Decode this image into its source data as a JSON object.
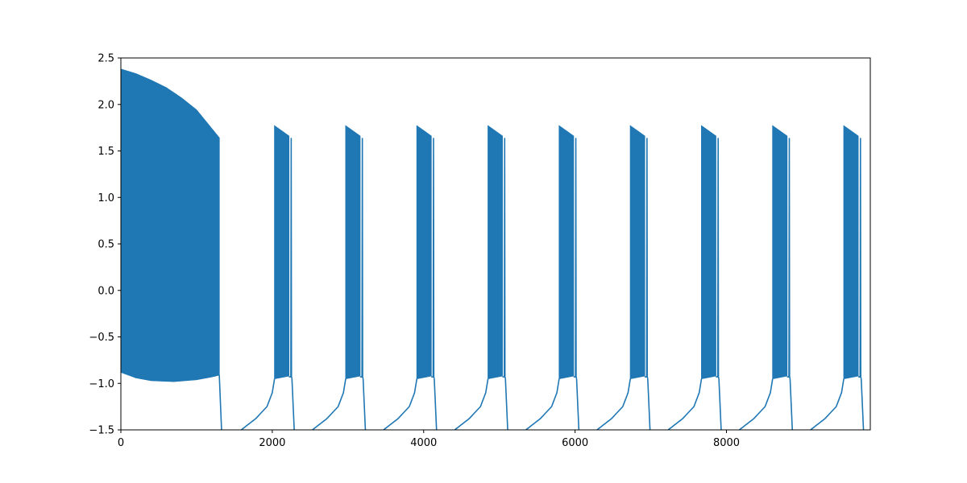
{
  "chart_data": {
    "type": "line",
    "title": "",
    "xlabel": "",
    "ylabel": "",
    "xlim": [
      0,
      9900
    ],
    "ylim": [
      -1.5,
      2.5
    ],
    "grid": false,
    "x_ticks": [
      0,
      2000,
      4000,
      6000,
      8000
    ],
    "y_ticks": [
      -1.5,
      -1.0,
      -0.5,
      0.0,
      0.5,
      1.0,
      1.5,
      2.0,
      2.5
    ],
    "x_tick_labels": [
      "0",
      "2000",
      "4000",
      "6000",
      "8000"
    ],
    "y_tick_labels": [
      "−1.5",
      "−1.0",
      "−0.5",
      "0.0",
      "0.5",
      "1.0",
      "1.5",
      "2.0",
      "2.5"
    ],
    "series": [
      {
        "color": "#1f77b4",
        "initial_oscillation": {
          "x_range": [
            0,
            1300
          ],
          "upper_envelope": [
            [
              0,
              2.38
            ],
            [
              200,
              2.33
            ],
            [
              400,
              2.26
            ],
            [
              600,
              2.18
            ],
            [
              800,
              2.07
            ],
            [
              1000,
              1.94
            ],
            [
              1200,
              1.74
            ],
            [
              1300,
              1.64
            ]
          ],
          "lower_envelope": [
            [
              0,
              -0.88
            ],
            [
              200,
              -0.94
            ],
            [
              400,
              -0.97
            ],
            [
              700,
              -0.98
            ],
            [
              1000,
              -0.96
            ],
            [
              1200,
              -0.93
            ],
            [
              1300,
              -0.91
            ]
          ]
        },
        "bursts": [
          {
            "start": 2030,
            "end": 2250
          },
          {
            "start": 2970,
            "end": 3190
          },
          {
            "start": 3910,
            "end": 4130
          },
          {
            "start": 4850,
            "end": 5070
          },
          {
            "start": 5790,
            "end": 6010
          },
          {
            "start": 6730,
            "end": 6950
          },
          {
            "start": 7670,
            "end": 7890
          },
          {
            "start": 8610,
            "end": 8830
          },
          {
            "start": 9550,
            "end": 9770
          }
        ],
        "burst_peak_max": 1.77,
        "burst_peak_end": 1.64,
        "burst_trough": -0.95,
        "interburst_recovery": [
          [
            -440,
            -1.5
          ],
          [
            -250,
            -1.38
          ],
          [
            -100,
            -1.25
          ],
          [
            -30,
            -1.1
          ],
          [
            0,
            -0.95
          ]
        ],
        "post_burst_drop": [
          [
            0,
            -0.95
          ],
          [
            30,
            -1.5
          ]
        ]
      }
    ]
  }
}
